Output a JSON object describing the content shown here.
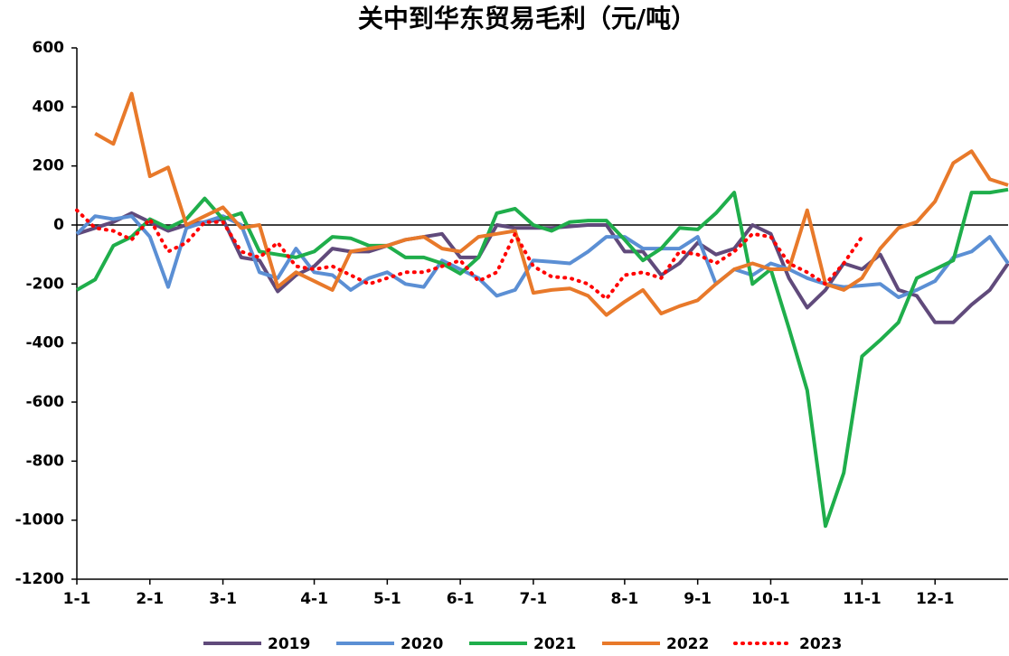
{
  "chart_data": {
    "type": "line",
    "title": "关中到华东贸易毛利（元/吨）",
    "categories": [
      "1-1",
      null,
      null,
      null,
      "2-1",
      null,
      null,
      null,
      "3-1",
      null,
      null,
      null,
      null,
      "4-1",
      null,
      null,
      null,
      "5-1",
      null,
      null,
      null,
      "6-1",
      null,
      null,
      null,
      "7-1",
      null,
      null,
      null,
      null,
      "8-1",
      null,
      null,
      null,
      "9-1",
      null,
      null,
      null,
      "10-1",
      null,
      null,
      null,
      null,
      "11-1",
      null,
      null,
      null,
      "12-1",
      null,
      null,
      null,
      null
    ],
    "series": [
      {
        "name": "2019",
        "color": "#604a7b",
        "dash": false,
        "values": [
          -30,
          -10,
          10,
          40,
          10,
          -20,
          0,
          10,
          20,
          -110,
          -120,
          -225,
          -170,
          -140,
          -80,
          -90,
          -90,
          -70,
          -50,
          -40,
          -30,
          -110,
          -110,
          0,
          -10,
          -10,
          -10,
          -5,
          0,
          0,
          -90,
          -90,
          -170,
          -130,
          -60,
          -100,
          -80,
          0,
          -30,
          -180,
          -280,
          -220,
          -130,
          -150,
          -100,
          -220,
          -240,
          -330,
          -330,
          -270,
          -220,
          -130
        ]
      },
      {
        "name": "2020",
        "color": "#5b8fd4",
        "dash": false,
        "values": [
          -30,
          30,
          20,
          30,
          -40,
          -210,
          -10,
          10,
          30,
          0,
          -160,
          -180,
          -80,
          -160,
          -170,
          -220,
          -180,
          -160,
          -200,
          -210,
          -120,
          -150,
          -180,
          -240,
          -220,
          -120,
          -125,
          -130,
          -90,
          -40,
          -40,
          -80,
          -80,
          -80,
          -40,
          -200,
          -150,
          -170,
          -130,
          -150,
          -180,
          -200,
          -210,
          -205,
          -200,
          -245,
          -220,
          -190,
          -110,
          -90,
          -40,
          -130
        ]
      },
      {
        "name": "2021",
        "color": "#1fae4b",
        "dash": false,
        "values": [
          -220,
          -185,
          -70,
          -40,
          20,
          -10,
          20,
          90,
          20,
          40,
          -90,
          -100,
          -110,
          -90,
          -40,
          -45,
          -70,
          -70,
          -110,
          -110,
          -130,
          -165,
          -110,
          40,
          55,
          0,
          -20,
          10,
          15,
          15,
          -50,
          -120,
          -80,
          -10,
          -15,
          40,
          110,
          -200,
          -150,
          -350,
          -560,
          -1020,
          -840,
          -445,
          -390,
          -330,
          -180,
          -150,
          -120,
          110,
          110,
          120
        ]
      },
      {
        "name": "2022",
        "color": "#e8792a",
        "dash": false,
        "values": [
          null,
          310,
          275,
          445,
          165,
          195,
          0,
          30,
          60,
          -10,
          0,
          -210,
          -160,
          -190,
          -220,
          -90,
          -80,
          -70,
          -50,
          -40,
          -80,
          -90,
          -40,
          -30,
          -20,
          -230,
          -220,
          -215,
          -240,
          -305,
          -260,
          -220,
          -300,
          -275,
          -255,
          -200,
          -150,
          -130,
          -150,
          -150,
          50,
          -200,
          -220,
          -180,
          -80,
          -10,
          10,
          80,
          210,
          250,
          155,
          135
        ]
      },
      {
        "name": "2023",
        "color": "#ff0000",
        "dash": true,
        "values": [
          50,
          -10,
          -20,
          -50,
          20,
          -90,
          -60,
          10,
          10,
          -90,
          -110,
          -60,
          -140,
          -150,
          -140,
          -170,
          -200,
          -180,
          -160,
          -160,
          -140,
          -120,
          -190,
          -160,
          -30,
          -140,
          -175,
          -180,
          -200,
          -250,
          -170,
          -160,
          -180,
          -90,
          -100,
          -130,
          -90,
          -30,
          -40,
          -130,
          -160,
          -200,
          -130,
          -40,
          null,
          null,
          null,
          null,
          null,
          null,
          null,
          null
        ]
      }
    ],
    "ylim": [
      -1200,
      600
    ],
    "yticks": [
      -1200,
      -1000,
      -800,
      -600,
      -400,
      -200,
      0,
      200,
      400,
      600
    ],
    "legend": "bottom"
  }
}
